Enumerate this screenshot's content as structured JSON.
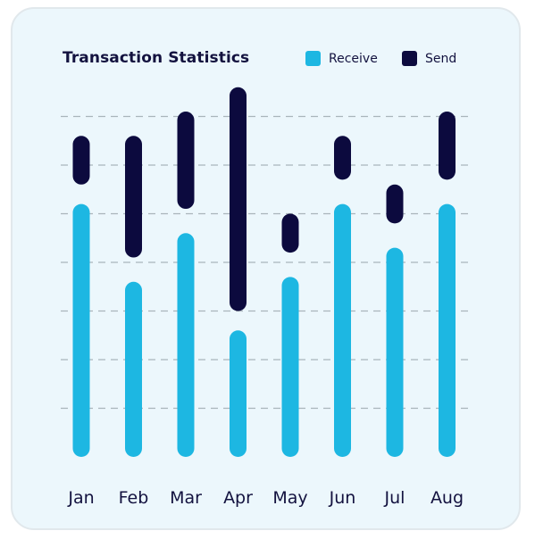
{
  "chart_data": {
    "type": "bar",
    "subtype": "floating-stacked-pill",
    "title": "Transaction Statistics",
    "categories": [
      "Jan",
      "Feb",
      "Mar",
      "Apr",
      "May",
      "Jun",
      "Jul",
      "Aug"
    ],
    "series": [
      {
        "name": "Receive",
        "color": "#1db7e2",
        "ranges": [
          [
            0,
            52
          ],
          [
            0,
            36
          ],
          [
            0,
            46
          ],
          [
            0,
            26
          ],
          [
            0,
            37
          ],
          [
            0,
            52
          ],
          [
            0,
            43
          ],
          [
            0,
            52
          ]
        ]
      },
      {
        "name": "Send",
        "color": "#0c0a3e",
        "ranges": [
          [
            56,
            66
          ],
          [
            41,
            66
          ],
          [
            51,
            71
          ],
          [
            30,
            76
          ],
          [
            42,
            50
          ],
          [
            57,
            66
          ],
          [
            48,
            56
          ],
          [
            57,
            71
          ]
        ]
      }
    ],
    "ylim": [
      0,
      80
    ],
    "grid": true,
    "grid_style": "dashed",
    "legend_position": "top-right",
    "xlabel": "",
    "ylabel": ""
  },
  "colors": {
    "card_background": "#ecf7fc",
    "grid": "#a9b5bb",
    "text": "#13123f"
  }
}
